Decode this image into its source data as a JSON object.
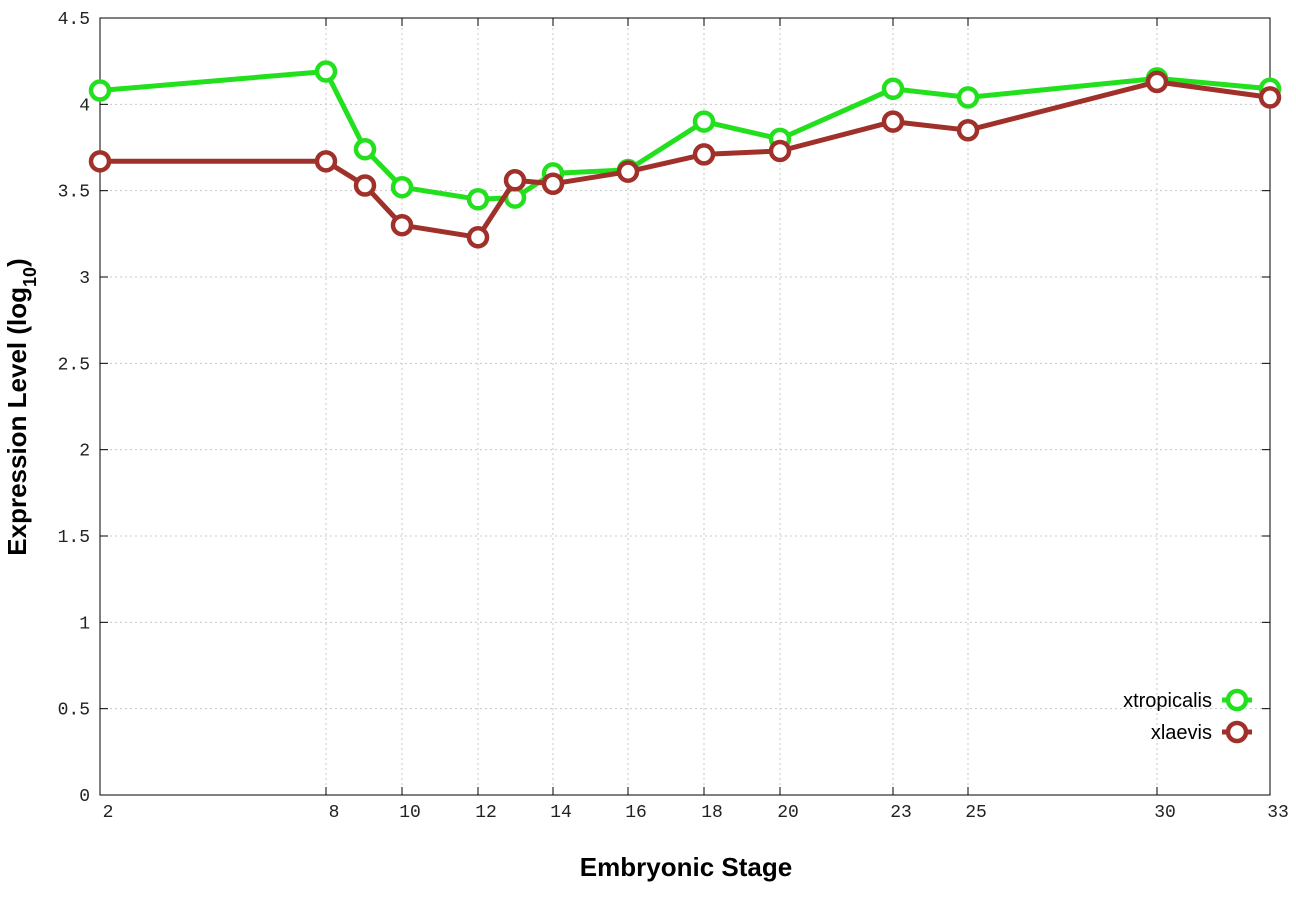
{
  "chart_data": {
    "type": "line",
    "xlabel": "Embryonic Stage",
    "ylabel_main": "Expression Level (log",
    "ylabel_sub": "10",
    "ylabel_close": ")",
    "x_ticks": [
      "2",
      "8",
      "10",
      "12",
      "14",
      "16",
      "18",
      "20",
      "23",
      "25",
      "30",
      "33"
    ],
    "y_ticks": [
      "0",
      "0.5",
      "1",
      "1.5",
      "2",
      "2.5",
      "3",
      "3.5",
      "4",
      "4.5"
    ],
    "xlim": [
      2,
      33
    ],
    "ylim": [
      0,
      4.5
    ],
    "grid": true,
    "legend_position": "bottom-right",
    "series": [
      {
        "name": "xtropicalis",
        "color": "#22e01e",
        "x": [
          2,
          8,
          9,
          10,
          12,
          13,
          14,
          16,
          18,
          20,
          23,
          25,
          30,
          33
        ],
        "y": [
          4.08,
          4.19,
          3.74,
          3.52,
          3.45,
          3.46,
          3.6,
          3.62,
          3.9,
          3.8,
          4.09,
          4.04,
          4.15,
          4.09
        ]
      },
      {
        "name": "xlaevis",
        "color": "#a0302a",
        "x": [
          2,
          8,
          9,
          10,
          12,
          13,
          14,
          16,
          18,
          20,
          23,
          25,
          30,
          33
        ],
        "y": [
          3.67,
          3.67,
          3.53,
          3.3,
          3.23,
          3.56,
          3.54,
          3.61,
          3.71,
          3.73,
          3.9,
          3.85,
          4.13,
          4.04
        ]
      }
    ]
  }
}
